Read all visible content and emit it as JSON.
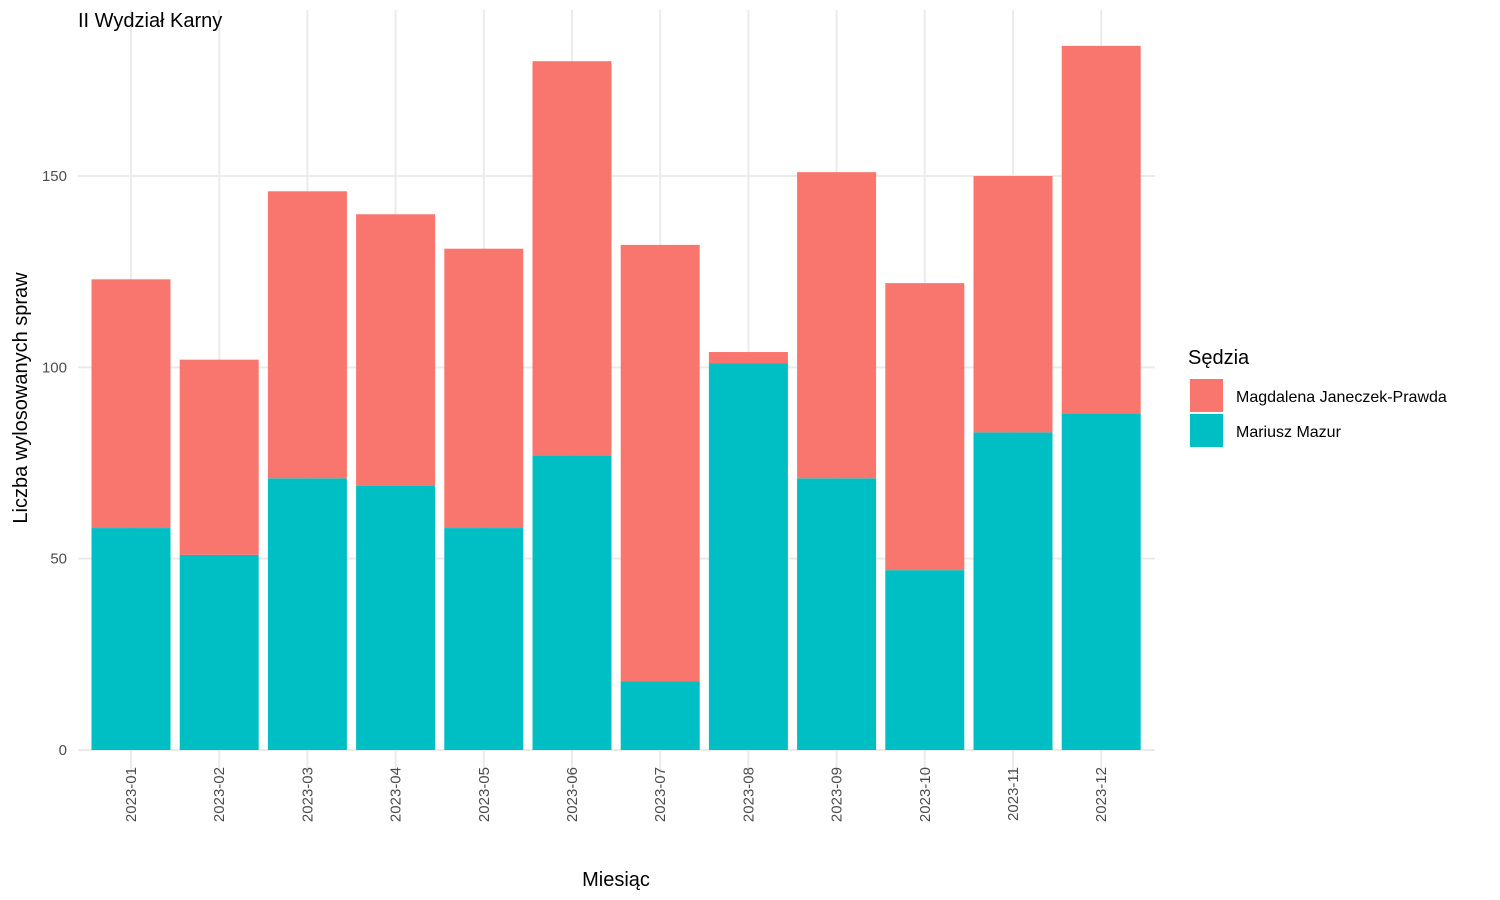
{
  "chart_data": {
    "type": "bar",
    "stacked": true,
    "title": "II Wydział Karny",
    "xlabel": "Miesiąc",
    "ylabel": "Liczba wylosowanych spraw",
    "ylim": [
      0,
      195
    ],
    "yticks": [
      0,
      50,
      100,
      150
    ],
    "grid": true,
    "categories": [
      "2023-01",
      "2023-02",
      "2023-03",
      "2023-04",
      "2023-05",
      "2023-06",
      "2023-07",
      "2023-08",
      "2023-09",
      "2023-10",
      "2023-11",
      "2023-12"
    ],
    "series": [
      {
        "name": "Mariusz Mazur",
        "color": "#00BFC4",
        "values": [
          58,
          51,
          71,
          69,
          58,
          77,
          18,
          101,
          71,
          47,
          83,
          88
        ]
      },
      {
        "name": "Magdalena Janeczek-Prawda",
        "color": "#F8766D",
        "values": [
          65,
          51,
          75,
          71,
          73,
          103,
          114,
          3,
          80,
          75,
          67,
          96
        ]
      }
    ],
    "legend": {
      "title": "Sędzia",
      "position": "right",
      "items": [
        {
          "label": "Magdalena Janeczek-Prawda",
          "color": "#F8766D"
        },
        {
          "label": "Mariusz Mazur",
          "color": "#00BFC4"
        }
      ]
    }
  }
}
